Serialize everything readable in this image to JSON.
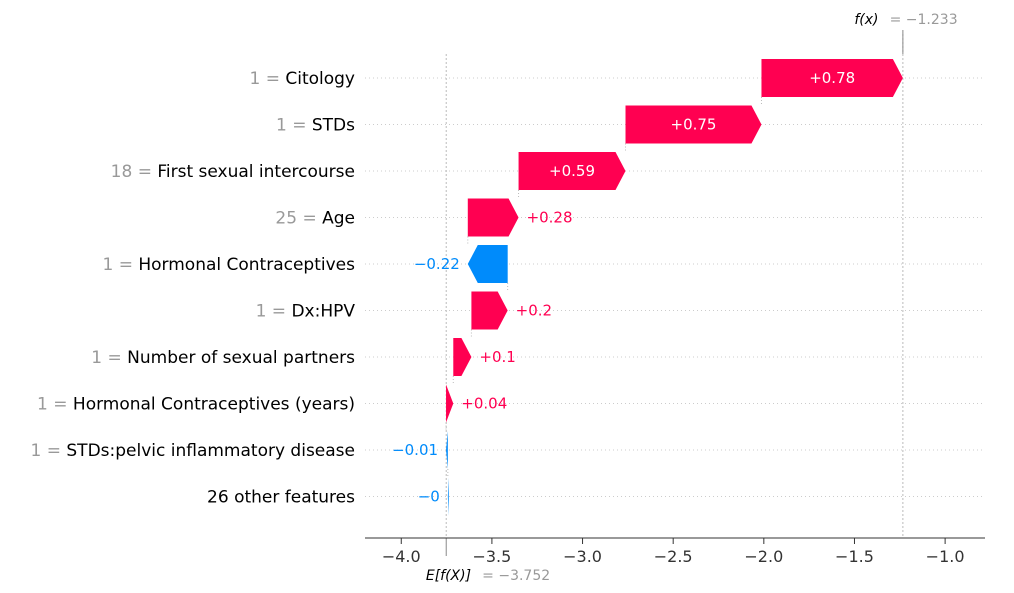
{
  "chart_data": {
    "type": "waterfall",
    "title": "",
    "xlabel": "",
    "ylabel": "",
    "xlim": [
      -4.2,
      -0.78
    ],
    "xticks": [
      {
        "value": -4.0,
        "label": "−4.0"
      },
      {
        "value": -3.5,
        "label": "−3.5"
      },
      {
        "value": -3.0,
        "label": "−3.0"
      },
      {
        "value": -2.5,
        "label": "−2.5"
      },
      {
        "value": -2.0,
        "label": "−2.0"
      },
      {
        "value": -1.5,
        "label": "−1.5"
      },
      {
        "value": -1.0,
        "label": "−1.0"
      }
    ],
    "grid": "horizontal dotted",
    "base_value": -3.752,
    "final_value": -1.233,
    "base_label_text": "E[f(X)]",
    "base_value_text": "= −3.752",
    "final_label_text": "f(x)",
    "final_value_text": "= −1.233",
    "colors": {
      "positive": "#ff0051",
      "negative": "#008bfb",
      "value_gray": "#999999"
    },
    "features": [
      {
        "value_text": "1 =",
        "name": "Citology",
        "contribution": 0.78,
        "label": "+0.78"
      },
      {
        "value_text": "1 =",
        "name": "STDs",
        "contribution": 0.75,
        "label": "+0.75"
      },
      {
        "value_text": "18 =",
        "name": "First sexual intercourse",
        "contribution": 0.59,
        "label": "+0.59"
      },
      {
        "value_text": "25 =",
        "name": "Age",
        "contribution": 0.28,
        "label": "+0.28"
      },
      {
        "value_text": "1 =",
        "name": "Hormonal Contraceptives",
        "contribution": -0.22,
        "label": "−0.22"
      },
      {
        "value_text": "1 =",
        "name": "Dx:HPV",
        "contribution": 0.2,
        "label": "+0.2"
      },
      {
        "value_text": "1 =",
        "name": "Number of sexual partners",
        "contribution": 0.1,
        "label": "+0.1"
      },
      {
        "value_text": "1 =",
        "name": "Hormonal Contraceptives (years)",
        "contribution": 0.04,
        "label": "+0.04"
      },
      {
        "value_text": "1 =",
        "name": "STDs:pelvic inflammatory disease",
        "contribution": -0.01,
        "label": "−0.01"
      },
      {
        "value_text": "",
        "name": "26 other features",
        "contribution": -0.005,
        "label": "−0"
      }
    ]
  }
}
